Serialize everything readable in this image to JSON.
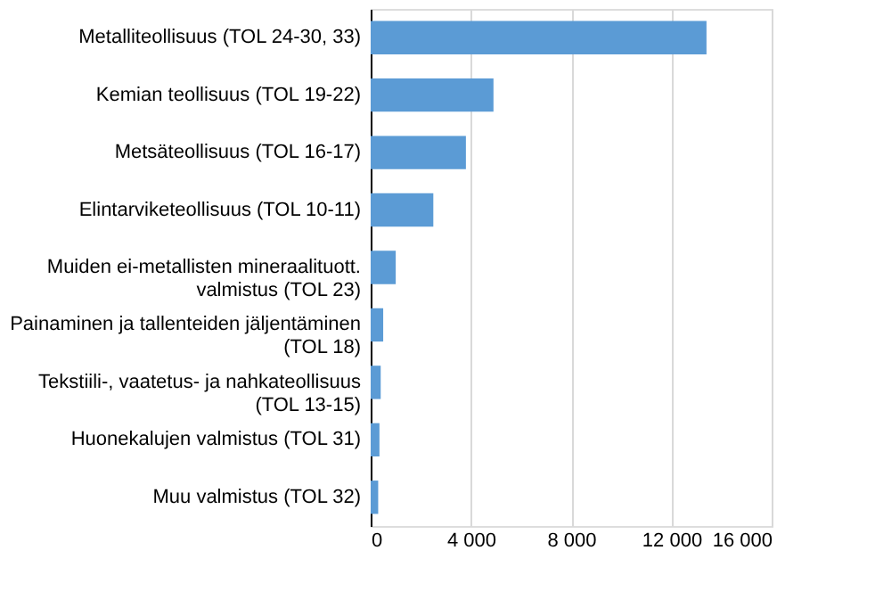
{
  "chart_data": {
    "type": "bar",
    "orientation": "horizontal",
    "categories": [
      "Metalliteollisuus (TOL 24-30, 33)",
      "Kemian teollisuus (TOL 19-22)",
      "Metsäteollisuus (TOL 16-17)",
      "Elintarviketeollisuus (TOL 10-11)",
      "Muiden ei-metallisten mineraalituott. valmistus (TOL 23)",
      "Painaminen ja tallenteiden jäljentäminen (TOL 18)",
      "Tekstiili-, vaatetus- ja nahkateollisuus (TOL 13-15)",
      "Huonekalujen valmistus (TOL 31)",
      "Muu valmistus (TOL 32)"
    ],
    "values": [
      13400,
      4900,
      3800,
      2500,
      1000,
      500,
      400,
      350,
      300
    ],
    "color": "#5b9bd5",
    "xlim": [
      0,
      16000
    ],
    "xticks": [
      0,
      {
        "value": 4000,
        "label": "4 000"
      },
      {
        "value": 8000,
        "label": "8 000"
      },
      {
        "value": 12000,
        "label": "12 000"
      },
      {
        "value": 16000,
        "label": "16 000"
      }
    ],
    "grid": "x"
  }
}
